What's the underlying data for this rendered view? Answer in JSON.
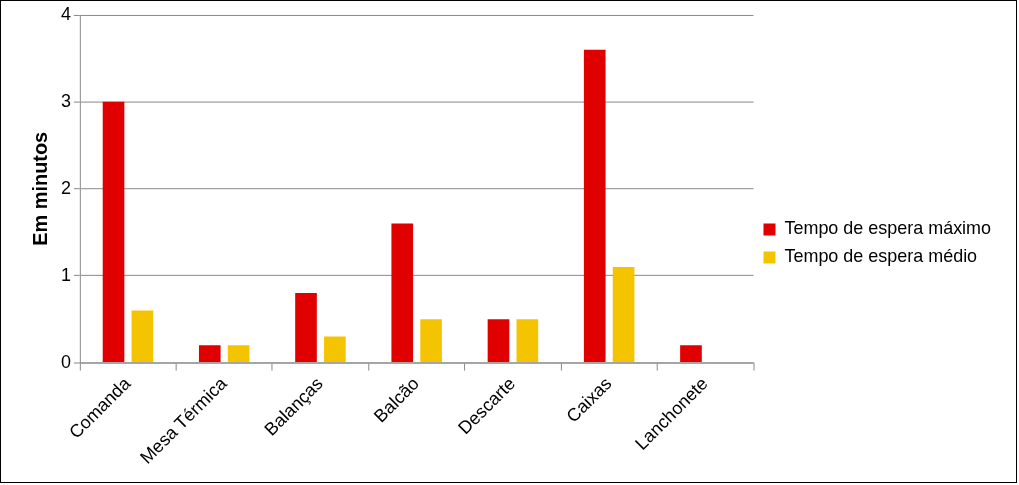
{
  "chart_data": {
    "type": "bar",
    "ylabel": "Em minutos",
    "categories": [
      "Comanda",
      "Mesa Térmica",
      "Balanças",
      "Balcão",
      "Descarte",
      "Caixas",
      "Lanchonete"
    ],
    "series": [
      {
        "name": "Tempo de espera máximo",
        "color": "#e00000",
        "values": [
          3.0,
          0.2,
          0.8,
          1.6,
          0.5,
          3.6,
          0.2
        ]
      },
      {
        "name": "Tempo de espera médio",
        "color": "#f5c400",
        "values": [
          0.6,
          0.2,
          0.3,
          0.5,
          0.5,
          1.1,
          null
        ]
      }
    ],
    "ylim": [
      0,
      4
    ],
    "yticks": [
      0,
      1,
      2,
      3,
      4
    ],
    "grid": "y",
    "legend": "right"
  }
}
